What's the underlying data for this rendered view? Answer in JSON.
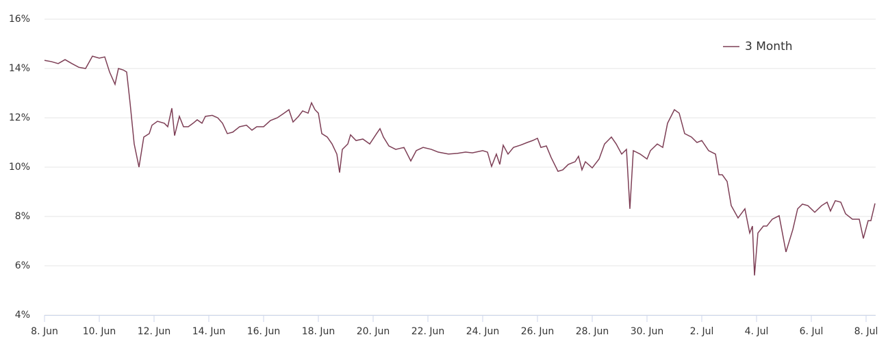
{
  "chart_data": {
    "type": "line",
    "x": [
      0,
      0.25,
      0.5,
      0.75,
      1,
      1.25,
      1.5,
      1.75,
      2,
      2.2,
      2.375,
      2.575,
      2.7,
      2.875,
      3.0,
      3.125,
      3.275,
      3.45,
      3.625,
      3.825,
      3.925,
      4.125,
      4.375,
      4.5,
      4.65,
      4.75,
      4.925,
      5.075,
      5.25,
      5.425,
      5.575,
      5.75,
      5.875,
      6.125,
      6.325,
      6.5,
      6.675,
      6.875,
      7.125,
      7.375,
      7.575,
      7.75,
      8,
      8.25,
      8.5,
      8.75,
      8.925,
      9.075,
      9.275,
      9.425,
      9.625,
      9.75,
      9.875,
      10,
      10.125,
      10.325,
      10.5,
      10.675,
      10.775,
      10.875,
      11.075,
      11.175,
      11.375,
      11.625,
      11.875,
      12.125,
      12.25,
      12.375,
      12.575,
      12.825,
      13.125,
      13.375,
      13.575,
      13.825,
      14.125,
      14.375,
      14.75,
      15.075,
      15.375,
      15.625,
      16.0,
      16.175,
      16.325,
      16.5,
      16.625,
      16.75,
      16.925,
      17.125,
      17.375,
      17.625,
      17.825,
      18.0,
      18.125,
      18.325,
      18.5,
      18.75,
      18.925,
      19.125,
      19.375,
      19.5,
      19.625,
      19.75,
      20.0,
      20.25,
      20.45,
      20.575,
      20.7,
      20.875,
      21.075,
      21.25,
      21.375,
      21.5,
      21.75,
      22.0,
      22.125,
      22.375,
      22.575,
      22.75,
      23.0,
      23.175,
      23.375,
      23.625,
      23.825,
      24.0,
      24.25,
      24.5,
      24.625,
      24.75,
      24.925,
      25.075,
      25.325,
      25.575,
      25.75,
      25.85,
      25.925,
      26.05,
      26.25,
      26.375,
      26.575,
      26.825,
      27.075,
      27.325,
      27.5,
      27.675,
      27.875,
      28.125,
      28.375,
      28.575,
      28.7,
      28.875,
      29.075,
      29.25,
      29.5,
      29.75,
      29.9,
      30.075,
      30.175,
      30.325
    ],
    "series": [
      {
        "name": "3 Month",
        "color": "#7d3e55",
        "values": [
          14.33,
          14.28,
          14.2,
          14.36,
          14.2,
          14.05,
          14.0,
          14.5,
          14.42,
          14.47,
          13.86,
          13.36,
          14.0,
          13.94,
          13.86,
          12.6,
          10.94,
          10.0,
          11.22,
          11.36,
          11.7,
          11.86,
          11.78,
          11.64,
          12.39,
          11.28,
          12.06,
          11.64,
          11.64,
          11.78,
          11.92,
          11.78,
          12.06,
          12.1,
          12.0,
          11.78,
          11.36,
          11.42,
          11.64,
          11.7,
          11.5,
          11.64,
          11.64,
          11.89,
          12.0,
          12.19,
          12.33,
          11.83,
          12.06,
          12.28,
          12.19,
          12.61,
          12.33,
          12.19,
          11.36,
          11.22,
          10.94,
          10.53,
          9.78,
          10.72,
          10.94,
          11.31,
          11.08,
          11.14,
          10.94,
          11.36,
          11.56,
          11.22,
          10.86,
          10.72,
          10.8,
          10.25,
          10.67,
          10.8,
          10.72,
          10.61,
          10.53,
          10.56,
          10.61,
          10.58,
          10.67,
          10.61,
          10.03,
          10.53,
          10.11,
          10.89,
          10.53,
          10.8,
          10.89,
          11.0,
          11.08,
          11.17,
          10.8,
          10.86,
          10.39,
          9.83,
          9.89,
          10.11,
          10.22,
          10.44,
          9.89,
          10.22,
          9.97,
          10.33,
          10.94,
          11.08,
          11.22,
          10.94,
          10.53,
          10.72,
          8.31,
          10.67,
          10.53,
          10.33,
          10.67,
          10.94,
          10.8,
          11.78,
          12.33,
          12.19,
          11.36,
          11.22,
          11.0,
          11.08,
          10.67,
          10.53,
          9.69,
          9.69,
          9.42,
          8.44,
          7.94,
          8.31,
          7.33,
          7.61,
          5.61,
          7.33,
          7.61,
          7.61,
          7.89,
          8.03,
          6.56,
          7.47,
          8.31,
          8.5,
          8.44,
          8.17,
          8.44,
          8.58,
          8.22,
          8.64,
          8.58,
          8.11,
          7.89,
          7.89,
          7.11,
          7.83,
          7.83,
          8.53
        ]
      }
    ],
    "xlim": [
      0,
      30.35
    ],
    "xticks": [
      {
        "value": 0,
        "label": "8. Jun"
      },
      {
        "value": 2,
        "label": "10. Jun"
      },
      {
        "value": 4,
        "label": "12. Jun"
      },
      {
        "value": 6,
        "label": "14. Jun"
      },
      {
        "value": 8,
        "label": "16. Jun"
      },
      {
        "value": 10,
        "label": "18. Jun"
      },
      {
        "value": 12,
        "label": "20. Jun"
      },
      {
        "value": 14,
        "label": "22. Jun"
      },
      {
        "value": 16,
        "label": "24. Jun"
      },
      {
        "value": 18,
        "label": "26. Jun"
      },
      {
        "value": 20,
        "label": "28. Jun"
      },
      {
        "value": 22,
        "label": "30. Jun"
      },
      {
        "value": 24,
        "label": "2. Jul"
      },
      {
        "value": 26,
        "label": "4. Jul"
      },
      {
        "value": 28,
        "label": "6. Jul"
      },
      {
        "value": 30,
        "label": "8. Jul"
      }
    ],
    "ylim": [
      4,
      16
    ],
    "yticks": [
      {
        "value": 4,
        "label": "4%"
      },
      {
        "value": 6,
        "label": "6%"
      },
      {
        "value": 8,
        "label": "8%"
      },
      {
        "value": 10,
        "label": "10%"
      },
      {
        "value": 12,
        "label": "12%"
      },
      {
        "value": 14,
        "label": "14%"
      },
      {
        "value": 16,
        "label": "16%"
      }
    ],
    "grid": true,
    "legend": "top-right"
  }
}
